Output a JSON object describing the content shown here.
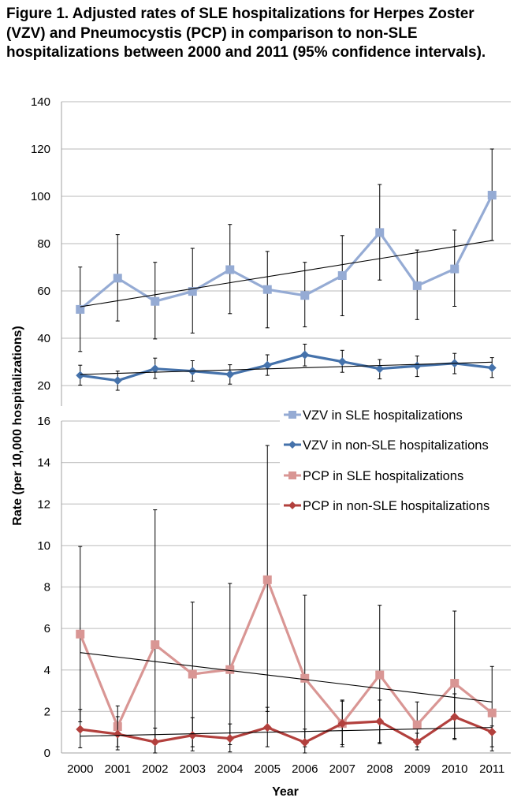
{
  "chart_data": {
    "type": "line",
    "title": "Figure 1.  Adjusted rates of SLE hospitalizations for Herpes Zoster (VZV) and Pneumocystis (PCP) in comparison to non-SLE hospitalizations between 2000 and 2011 (95% confidence intervals).",
    "xlabel": "Year",
    "ylabel": "Rate (per 10,000 hospitalizations)",
    "categories": [
      "2000",
      "2001",
      "2002",
      "2003",
      "2004",
      "2005",
      "2006",
      "2007",
      "2008",
      "2009",
      "2010",
      "2011"
    ],
    "grid": true,
    "legend_position": "right, between panels",
    "legend": [
      {
        "label": "VZV in SLE  hospitalizations",
        "color": "#95abd4",
        "marker": "square"
      },
      {
        "label": "VZV in non-SLE  hospitalizations",
        "color": "#4572ab",
        "marker": "diamond"
      },
      {
        "label": "PCP in SLE hospitalizations",
        "color": "#d99694",
        "marker": "square"
      },
      {
        "label": "PCP in non-SLE  hospitalizations",
        "color": "#b2403d",
        "marker": "diamond"
      }
    ],
    "panels": [
      {
        "ylim": [
          20,
          140
        ],
        "yticks": [
          "20",
          "40",
          "60",
          "80",
          "100",
          "120",
          "140"
        ],
        "series": [
          {
            "name": "VZV in SLE  hospitalizations",
            "color": "#95abd4",
            "marker": "square",
            "values": [
              52.2,
              65.4,
              55.6,
              59.8,
              69.0,
              60.6,
              58.1,
              66.5,
              84.7,
              62.2,
              69.3,
              100.5
            ],
            "ci_upper": [
              70.1,
              83.8,
              72.1,
              78.0,
              88.1,
              76.7,
              72.1,
              83.4,
              105.0,
              77.3,
              85.7,
              120.0
            ],
            "ci_lower": [
              34.4,
              47.3,
              39.7,
              42.2,
              50.4,
              44.4,
              44.8,
              49.5,
              64.6,
              47.9,
              53.5,
              81.3
            ],
            "trendline": [
              53.3,
              81.3
            ]
          },
          {
            "name": "VZV in non-SLE  hospitalizations",
            "color": "#4572ab",
            "marker": "diamond",
            "values": [
              24.3,
              22.1,
              27.1,
              26.1,
              24.7,
              28.6,
              33.0,
              30.1,
              27.1,
              28.3,
              29.4,
              27.5
            ],
            "ci_upper": [
              28.6,
              26.1,
              31.6,
              30.5,
              28.8,
              33.0,
              37.5,
              34.9,
              31.0,
              32.5,
              33.6,
              31.8
            ],
            "ci_lower": [
              20.2,
              18.0,
              23.0,
              21.9,
              20.6,
              24.3,
              28.3,
              25.6,
              22.8,
              23.8,
              25.0,
              23.4
            ],
            "trendline": [
              24.7,
              29.9
            ]
          }
        ]
      },
      {
        "ylim": [
          0,
          16
        ],
        "yticks": [
          "0",
          "2",
          "4",
          "6",
          "8",
          "10",
          "12",
          "14",
          "16"
        ],
        "series": [
          {
            "name": "PCP in SLE hospitalizations",
            "color": "#d99694",
            "marker": "square",
            "values": [
              5.73,
              1.27,
              5.22,
              3.8,
              4.02,
              8.35,
              3.6,
              1.42,
              3.76,
              1.36,
              3.36,
              1.93
            ],
            "ci_upper": [
              9.95,
              2.27,
              11.72,
              7.27,
              8.17,
              14.82,
              7.6,
              2.5,
              7.12,
              2.46,
              6.84,
              4.17
            ],
            "ci_lower": [
              1.5,
              0.3,
              0.0,
              0.3,
              0.4,
              2.0,
              0.3,
              0.4,
              0.5,
              0.3,
              0.7,
              0.3
            ],
            "trendline": [
              4.84,
              2.46
            ]
          },
          {
            "name": "PCP in non-SLE  hospitalizations",
            "color": "#b2403d",
            "marker": "diamond",
            "values": [
              1.14,
              0.91,
              0.53,
              0.85,
              0.7,
              1.23,
              0.51,
              1.42,
              1.52,
              0.53,
              1.74,
              1.01
            ],
            "ci_upper": [
              2.1,
              1.75,
              1.2,
              1.7,
              1.4,
              2.2,
              1.15,
              2.55,
              2.55,
              0.95,
              2.85,
              1.3
            ],
            "ci_lower": [
              0.25,
              0.15,
              0.0,
              0.1,
              0.05,
              0.3,
              0.0,
              0.3,
              0.45,
              0.15,
              0.65,
              0.1
            ],
            "trendline": [
              0.81,
              1.23
            ]
          }
        ]
      }
    ]
  }
}
